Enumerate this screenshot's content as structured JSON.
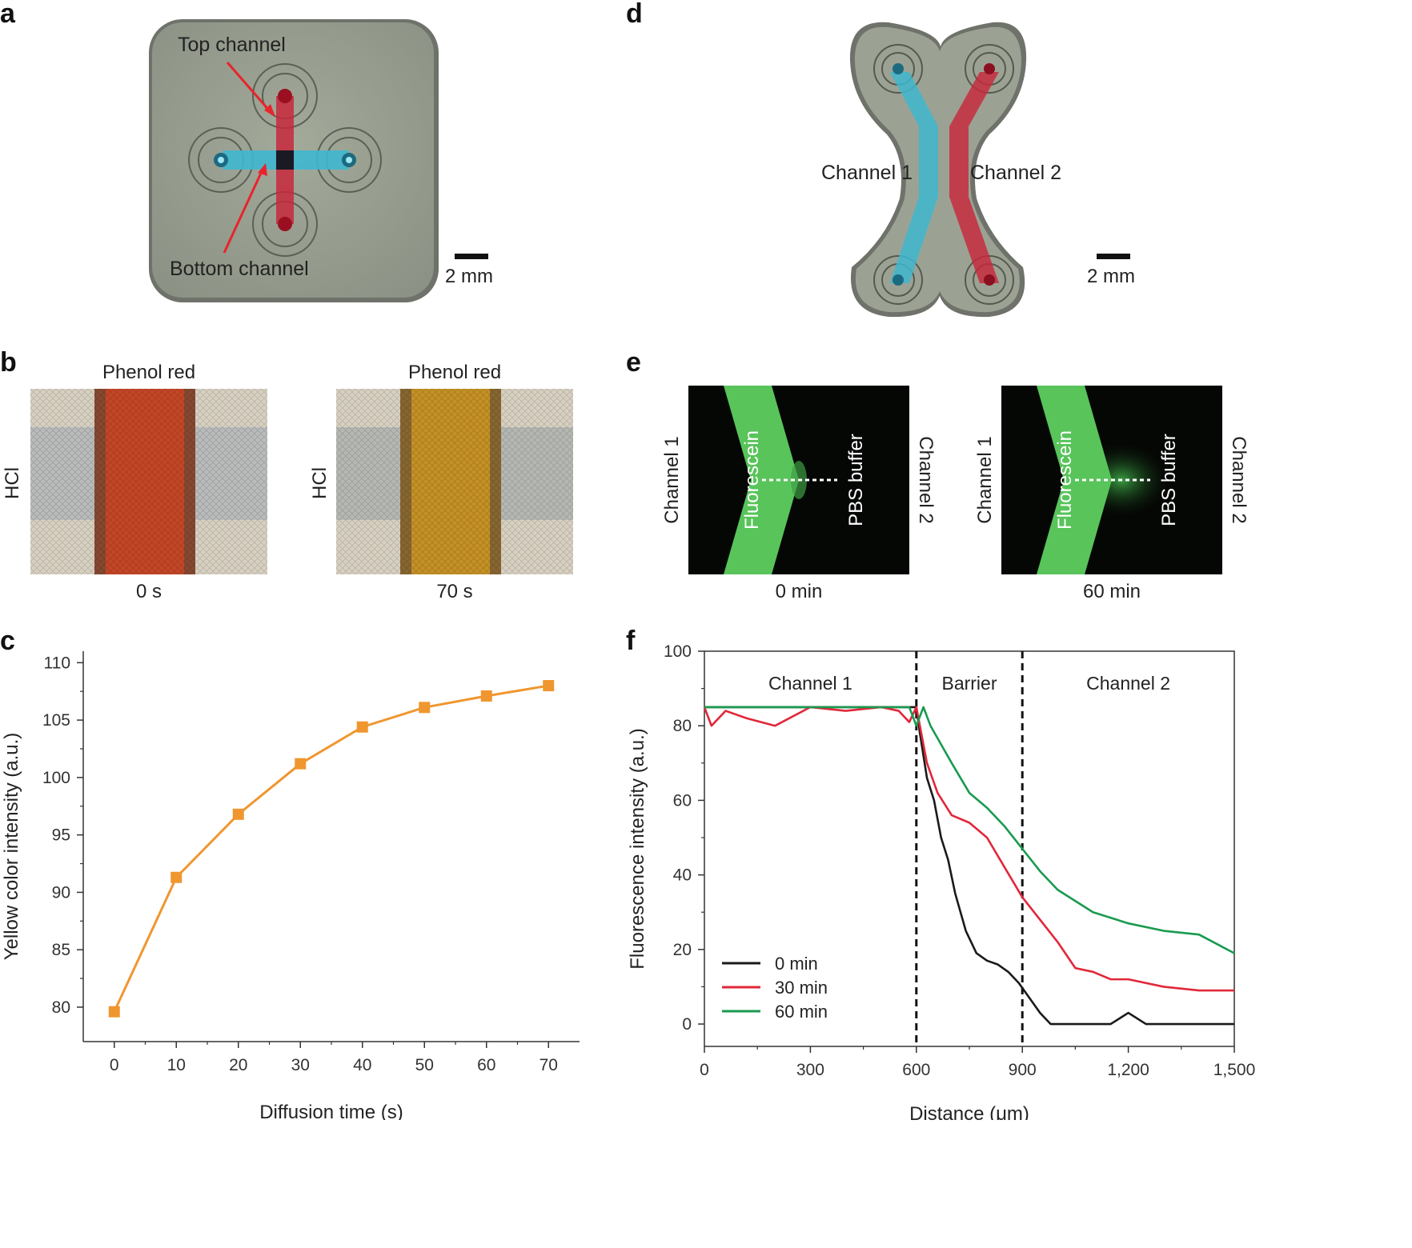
{
  "panels": {
    "a": "a",
    "b": "b",
    "c": "c",
    "d": "d",
    "e": "e",
    "f": "f"
  },
  "panel_a": {
    "top_channel": "Top channel",
    "bottom_channel": "Bottom channel",
    "scale": "2 mm"
  },
  "panel_d": {
    "channel1": "Channel 1",
    "channel2": "Channel 2",
    "scale": "2 mm"
  },
  "panel_b": {
    "left": {
      "title": "Phenol red",
      "side": "HCl",
      "time": "0 s"
    },
    "right": {
      "title": "Phenol red",
      "side": "HCl",
      "time": "70 s"
    }
  },
  "panel_e": {
    "left": {
      "left_label": "Channel 1",
      "right_label": "Channel 2",
      "inner_left": "Fluorescein",
      "inner_right": "PBS buffer",
      "time": "0 min"
    },
    "right": {
      "left_label": "Channel 1",
      "right_label": "Channel 2",
      "inner_left": "Fluorescein",
      "inner_right": "PBS buffer",
      "time": "60 min"
    }
  },
  "colors": {
    "orange": "#f0962f",
    "black": "#1a1a1a",
    "red": "#e0283a",
    "green": "#1a9a50",
    "cyan": "#3fb7cf",
    "crimson": "#c8283c"
  },
  "chart_data": [
    {
      "type": "line",
      "id": "c",
      "title": "",
      "xlabel": "Diffusion time (s)",
      "ylabel": "Yellow color intensity (a.u.)",
      "x": [
        0,
        10,
        20,
        30,
        40,
        50,
        60,
        70
      ],
      "values": [
        79.6,
        91.3,
        96.8,
        101.2,
        104.4,
        106.1,
        107.1,
        108.0
      ],
      "xlim": [
        -5,
        75
      ],
      "ylim": [
        77,
        111
      ],
      "xticks": [
        "0",
        "10",
        "20",
        "30",
        "40",
        "50",
        "60",
        "70"
      ],
      "yticks": [
        "80",
        "85",
        "90",
        "95",
        "100",
        "105",
        "110"
      ],
      "marker": "square"
    },
    {
      "type": "line",
      "id": "f",
      "title": "",
      "xlabel": "Distance (μm)",
      "ylabel": "Fluorescence intensity (a.u.)",
      "xlim": [
        0,
        1500
      ],
      "ylim": [
        -6,
        100
      ],
      "xticks": [
        "0",
        "300",
        "600",
        "900",
        "1,200",
        "1,500"
      ],
      "yticks": [
        "0",
        "20",
        "40",
        "60",
        "80",
        "100"
      ],
      "regions": [
        "Channel 1",
        "Barrier",
        "Channel 2"
      ],
      "boundaries": [
        600,
        900
      ],
      "legend": "bottom-left",
      "series": [
        {
          "name": "0 min",
          "x": [
            0,
            150,
            300,
            450,
            600,
            610,
            630,
            650,
            670,
            690,
            710,
            740,
            770,
            800,
            830,
            860,
            890,
            920,
            950,
            980,
            1050,
            1150,
            1200,
            1250,
            1300,
            1400,
            1500
          ],
          "values": [
            85,
            85,
            85,
            85,
            85,
            78,
            66,
            60,
            50,
            44,
            35,
            25,
            19,
            17,
            16,
            14,
            11,
            7,
            3,
            0,
            0,
            0,
            3,
            0,
            0,
            0,
            0
          ]
        },
        {
          "name": "30 min",
          "x": [
            0,
            20,
            60,
            120,
            200,
            300,
            400,
            500,
            550,
            580,
            600,
            610,
            630,
            660,
            700,
            750,
            800,
            850,
            900,
            950,
            1000,
            1050,
            1100,
            1150,
            1200,
            1300,
            1400,
            1500
          ],
          "values": [
            85,
            80,
            84,
            82,
            80,
            85,
            84,
            85,
            84,
            81,
            85,
            80,
            70,
            62,
            56,
            54,
            50,
            42,
            34,
            28,
            22,
            15,
            14,
            12,
            12,
            10,
            9,
            9
          ]
        },
        {
          "name": "60 min",
          "x": [
            0,
            100,
            200,
            300,
            400,
            500,
            580,
            600,
            620,
            640,
            670,
            700,
            750,
            800,
            850,
            900,
            950,
            1000,
            1050,
            1100,
            1200,
            1300,
            1400,
            1500
          ],
          "values": [
            85,
            85,
            85,
            85,
            85,
            85,
            85,
            80,
            85,
            80,
            75,
            70,
            62,
            58,
            53,
            47,
            41,
            36,
            33,
            30,
            27,
            25,
            24,
            19
          ]
        }
      ]
    }
  ]
}
